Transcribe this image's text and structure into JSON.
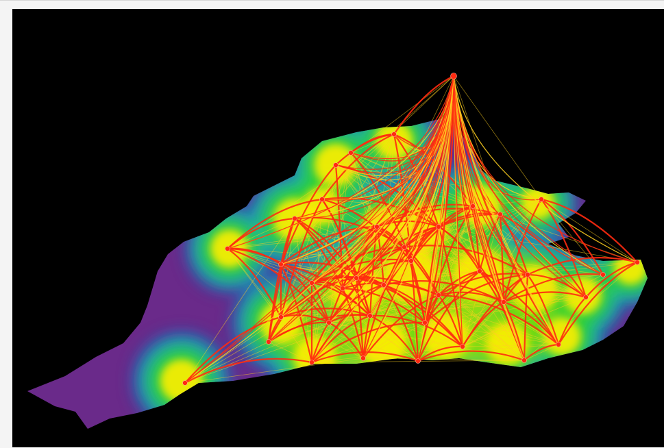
{
  "map": {
    "style": "3D flow-network over density surface",
    "background_color": "#000000",
    "land_color": "#6a2a8a",
    "density_colors": [
      "#1f6fbf",
      "#1fb8b0",
      "#2bd12b",
      "#a8e000",
      "#ffee00"
    ],
    "edge_colors": [
      "#ff2a10",
      "#ffd020"
    ],
    "node_color": "#ff2a10"
  }
}
